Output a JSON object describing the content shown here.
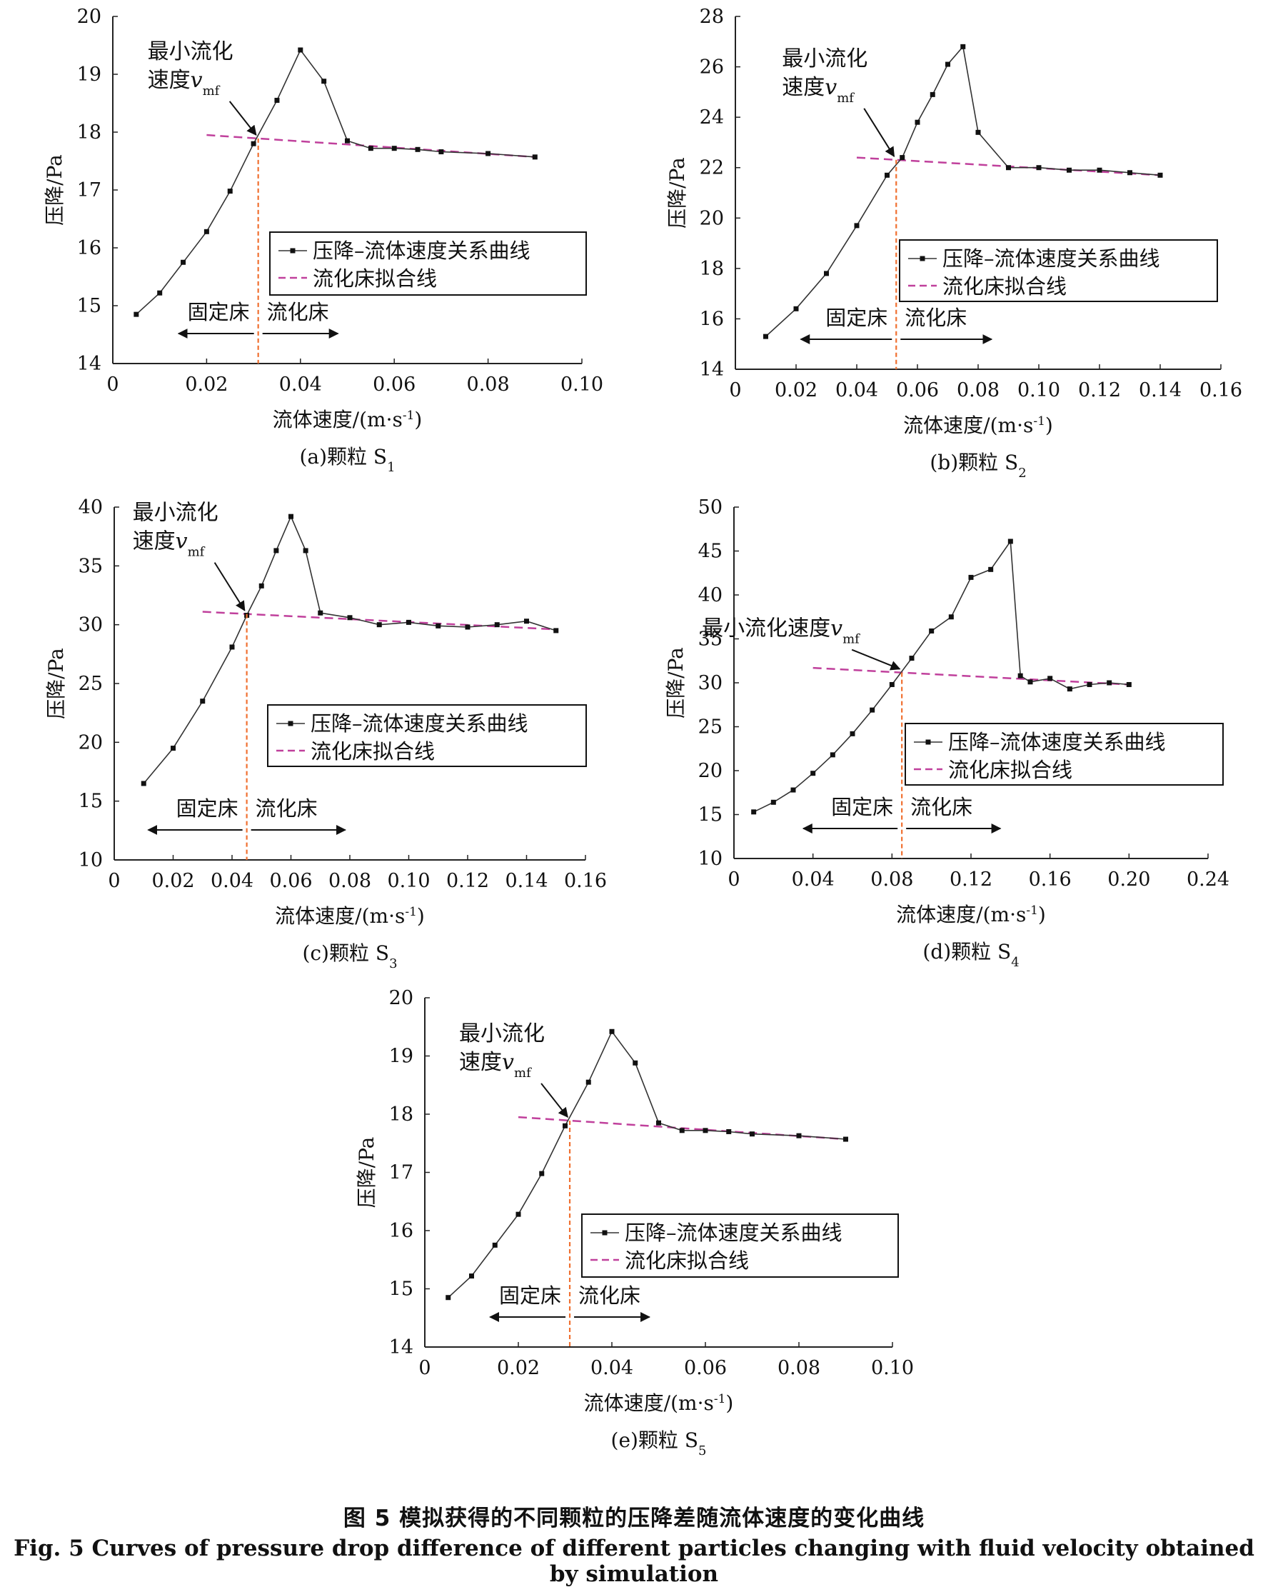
{
  "figure": {
    "caption_cn": "图 5  模拟获得的不同颗粒的压降差随流体速度的变化曲线",
    "caption_en": "Fig. 5  Curves of pressure drop difference of different particles changing with fluid velocity obtained by simulation"
  },
  "colors": {
    "curve": "#333333",
    "fit": "#c0409c",
    "vline": "#f07030",
    "axis": "#222222"
  },
  "chart_data": [
    {
      "type": "line",
      "caption": "(a)颗粒 S1",
      "xlabel": "流体速度/(m·s-1)",
      "ylabel": "压降/Pa",
      "xlim": [
        0,
        0.1
      ],
      "ylim": [
        14,
        20
      ],
      "xticks": [
        "0",
        "0.02",
        "0.04",
        "0.06",
        "0.08",
        "0.10"
      ],
      "yticks": [
        "14",
        "15",
        "16",
        "17",
        "18",
        "19",
        "20"
      ],
      "legend": [
        "压降–流体速度关系曲线",
        "流化床拟合线"
      ],
      "annotation": "最小流化\n速度vmf",
      "regions": [
        "固定床",
        "流化床"
      ],
      "vmf": 0.031,
      "series": [
        {
          "name": "压降–流体速度关系曲线",
          "x": [
            0.005,
            0.01,
            0.015,
            0.02,
            0.025,
            0.03,
            0.035,
            0.04,
            0.045,
            0.05,
            0.055,
            0.06,
            0.065,
            0.07,
            0.08,
            0.09
          ],
          "y": [
            14.85,
            15.22,
            15.75,
            16.28,
            16.98,
            17.8,
            18.55,
            19.42,
            18.88,
            17.85,
            17.72,
            17.72,
            17.7,
            17.66,
            17.63,
            17.57
          ]
        },
        {
          "name": "流化床拟合线",
          "x": [
            0.02,
            0.09
          ],
          "y": [
            17.95,
            17.57
          ]
        }
      ]
    },
    {
      "type": "line",
      "caption": "(b)颗粒 S2",
      "xlabel": "流体速度/(m·s-1)",
      "ylabel": "压降/Pa",
      "xlim": [
        0,
        0.16
      ],
      "ylim": [
        14,
        28
      ],
      "xticks": [
        "0",
        "0.02",
        "0.04",
        "0.06",
        "0.08",
        "0.10",
        "0.12",
        "0.14",
        "0.16"
      ],
      "yticks": [
        "14",
        "16",
        "18",
        "20",
        "22",
        "24",
        "26",
        "28"
      ],
      "legend": [
        "压降–流体速度关系曲线",
        "流化床拟合线"
      ],
      "annotation": "最小流化\n速度vmf",
      "regions": [
        "固定床",
        "流化床"
      ],
      "vmf": 0.053,
      "series": [
        {
          "name": "压降–流体速度关系曲线",
          "x": [
            0.01,
            0.02,
            0.03,
            0.04,
            0.05,
            0.055,
            0.06,
            0.065,
            0.07,
            0.075,
            0.08,
            0.09,
            0.1,
            0.11,
            0.12,
            0.13,
            0.14
          ],
          "y": [
            15.3,
            16.4,
            17.8,
            19.7,
            21.7,
            22.4,
            23.8,
            24.9,
            26.1,
            26.8,
            23.4,
            22.0,
            22.0,
            21.9,
            21.9,
            21.8,
            21.7
          ]
        },
        {
          "name": "流化床拟合线",
          "x": [
            0.04,
            0.14
          ],
          "y": [
            22.4,
            21.7
          ]
        }
      ]
    },
    {
      "type": "line",
      "caption": "(c)颗粒 S3",
      "xlabel": "流体速度/(m·s-1)",
      "ylabel": "压降/Pa",
      "xlim": [
        0,
        0.16
      ],
      "ylim": [
        10,
        40
      ],
      "xticks": [
        "0",
        "0.02",
        "0.04",
        "0.06",
        "0.08",
        "0.10",
        "0.12",
        "0.14",
        "0.16"
      ],
      "yticks": [
        "10",
        "15",
        "20",
        "25",
        "30",
        "35",
        "40"
      ],
      "legend": [
        "压降–流体速度关系曲线",
        "流化床拟合线"
      ],
      "annotation": "最小流化\n速度vmf",
      "regions": [
        "固定床",
        "流化床"
      ],
      "vmf": 0.045,
      "series": [
        {
          "name": "压降–流体速度关系曲线",
          "x": [
            0.01,
            0.02,
            0.03,
            0.04,
            0.045,
            0.05,
            0.055,
            0.06,
            0.065,
            0.07,
            0.08,
            0.09,
            0.1,
            0.11,
            0.12,
            0.13,
            0.14,
            0.15
          ],
          "y": [
            16.5,
            19.5,
            23.5,
            28.1,
            30.8,
            33.3,
            36.3,
            39.2,
            36.3,
            31.0,
            30.6,
            30.0,
            30.2,
            29.9,
            29.8,
            30.0,
            30.3,
            29.5
          ]
        },
        {
          "name": "流化床拟合线",
          "x": [
            0.03,
            0.15
          ],
          "y": [
            31.1,
            29.6
          ]
        }
      ]
    },
    {
      "type": "line",
      "caption": "(d)颗粒 S4",
      "xlabel": "流体速度/(m·s-1)",
      "ylabel": "压降/Pa",
      "xlim": [
        0,
        0.24
      ],
      "ylim": [
        10,
        50
      ],
      "xticks": [
        "0",
        "0.04",
        "0.08",
        "0.12",
        "0.16",
        "0.20",
        "0.24"
      ],
      "yticks": [
        "10",
        "15",
        "20",
        "25",
        "30",
        "35",
        "40",
        "45",
        "50"
      ],
      "legend": [
        "压降–流体速度关系曲线",
        "流化床拟合线"
      ],
      "annotation": "最小流化速度vmf",
      "regions": [
        "固定床",
        "流化床"
      ],
      "vmf": 0.085,
      "series": [
        {
          "name": "压降–流体速度关系曲线",
          "x": [
            0.01,
            0.02,
            0.03,
            0.04,
            0.05,
            0.06,
            0.07,
            0.08,
            0.09,
            0.1,
            0.11,
            0.12,
            0.13,
            0.14,
            0.145,
            0.15,
            0.16,
            0.17,
            0.18,
            0.19,
            0.2
          ],
          "y": [
            15.3,
            16.4,
            17.8,
            19.7,
            21.8,
            24.2,
            26.9,
            29.8,
            32.8,
            35.9,
            37.5,
            42.0,
            42.9,
            46.1,
            30.8,
            30.1,
            30.5,
            29.3,
            29.8,
            30.0,
            29.8
          ]
        },
        {
          "name": "流化床拟合线",
          "x": [
            0.04,
            0.2
          ],
          "y": [
            31.7,
            29.8
          ]
        }
      ]
    },
    {
      "type": "line",
      "caption": "(e)颗粒 S5",
      "xlabel": "流体速度/(m·s-1)",
      "ylabel": "压降/Pa",
      "xlim": [
        0,
        0.1
      ],
      "ylim": [
        14,
        20
      ],
      "xticks": [
        "0",
        "0.02",
        "0.04",
        "0.06",
        "0.08",
        "0.10"
      ],
      "yticks": [
        "14",
        "15",
        "16",
        "17",
        "18",
        "19",
        "20"
      ],
      "legend": [
        "压降–流体速度关系曲线",
        "流化床拟合线"
      ],
      "annotation": "最小流化\n速度vmf",
      "regions": [
        "固定床",
        "流化床"
      ],
      "vmf": 0.031,
      "series": [
        {
          "name": "压降–流体速度关系曲线",
          "x": [
            0.005,
            0.01,
            0.015,
            0.02,
            0.025,
            0.03,
            0.035,
            0.04,
            0.045,
            0.05,
            0.055,
            0.06,
            0.065,
            0.07,
            0.08,
            0.09
          ],
          "y": [
            14.85,
            15.22,
            15.75,
            16.28,
            16.98,
            17.8,
            18.55,
            19.42,
            18.88,
            17.85,
            17.72,
            17.72,
            17.7,
            17.66,
            17.63,
            17.57
          ]
        },
        {
          "name": "流化床拟合线",
          "x": [
            0.02,
            0.09
          ],
          "y": [
            17.95,
            17.57
          ]
        }
      ]
    }
  ]
}
